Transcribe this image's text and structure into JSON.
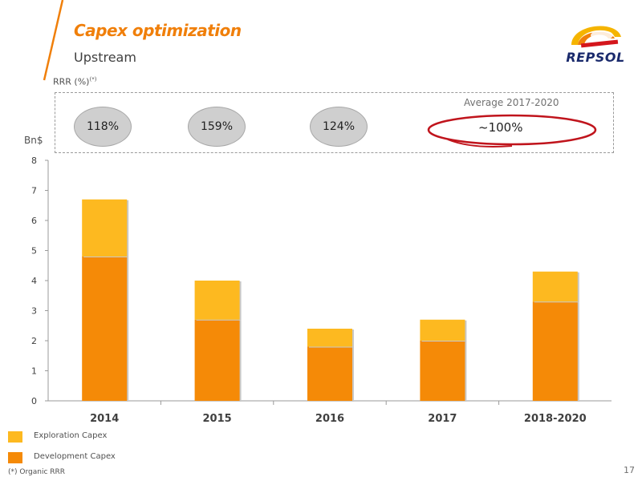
{
  "header": {
    "title": "Capex optimization",
    "subtitle": "Upstream",
    "logo_text": "REPSOL"
  },
  "rrr": {
    "label": "RRR (%)",
    "label_sup": "(*)",
    "values": [
      "118%",
      "159%",
      "124%"
    ],
    "average_label": "Average 2017-2020",
    "average_value": "~100%"
  },
  "chart_data": {
    "type": "bar",
    "stacked": true,
    "ylabel": "Bn$",
    "ylim": [
      0,
      8
    ],
    "yticks": [
      "0",
      "1",
      "2",
      "3",
      "4",
      "5",
      "6",
      "7",
      "8"
    ],
    "categories": [
      "2014",
      "2015",
      "2016",
      "2017",
      "2018-2020"
    ],
    "series": [
      {
        "name": "Development Capex",
        "values": [
          4.8,
          2.7,
          1.8,
          2.0,
          3.3
        ],
        "color": "#f58a07"
      },
      {
        "name": "Exploration Capex",
        "values": [
          1.9,
          1.3,
          0.6,
          0.7,
          1.0
        ],
        "color": "#fdb920"
      }
    ],
    "grid": false,
    "legend_position": "bottom-left"
  },
  "legend": {
    "exploration": "Exploration Capex",
    "development": "Development Capex"
  },
  "footnote": "(*) Organic RRR",
  "page_number": "17",
  "colors": {
    "accent": "#f07f0a",
    "exploration": "#fdb920",
    "development": "#f58a07",
    "highlight": "#c0141c",
    "logo_blue": "#1a2a6c"
  }
}
